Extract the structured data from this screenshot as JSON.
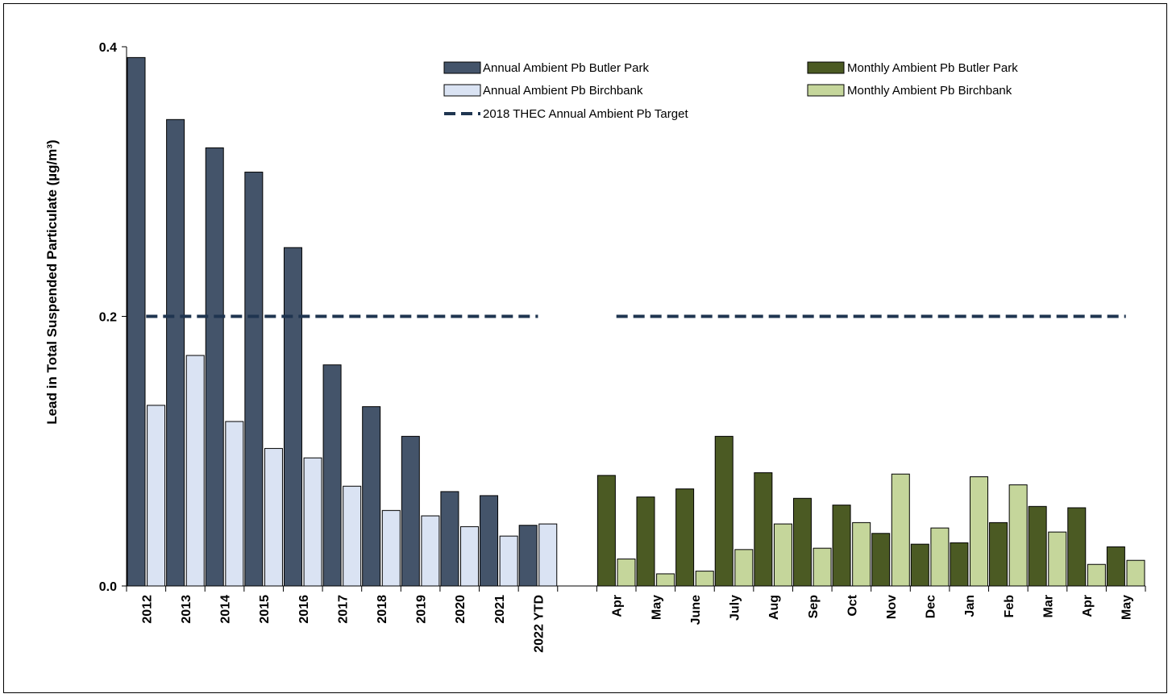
{
  "chart_data": {
    "type": "bar",
    "ylabel": "Lead in Total Suspended Particulate (µg/m³)",
    "ylim": [
      0.0,
      0.4
    ],
    "yticks": [
      "0.0",
      "0.2",
      "0.4"
    ],
    "grid": false,
    "legend_position": "top",
    "colors": {
      "annual_butler": "#44546a",
      "annual_birchbank": "#dae3f3",
      "monthly_butler": "#4b5a23",
      "monthly_birchbank": "#c5d69b",
      "target": "#1f3550"
    },
    "annual": {
      "categories": [
        "2012",
        "2013",
        "2014",
        "2015",
        "2016",
        "2017",
        "2018",
        "2019",
        "2020",
        "2021",
        "2022 YTD"
      ],
      "series": [
        {
          "name": "Annual Ambient Pb Butler Park",
          "values": [
            0.392,
            0.346,
            0.325,
            0.307,
            0.251,
            0.164,
            0.133,
            0.111,
            0.07,
            0.067,
            0.045
          ]
        },
        {
          "name": "Annual Ambient Pb Birchbank",
          "values": [
            0.134,
            0.171,
            0.122,
            0.102,
            0.095,
            0.074,
            0.056,
            0.052,
            0.044,
            0.037,
            0.046
          ]
        }
      ],
      "target_name": "2018 THEC Annual Ambient Pb Target",
      "target_value": 0.2
    },
    "monthly": {
      "categories": [
        "Apr",
        "May",
        "June",
        "July",
        "Aug",
        "Sep",
        "Oct",
        "Nov",
        "Dec",
        "Jan",
        "Feb",
        "Mar",
        "Apr",
        "May"
      ],
      "series": [
        {
          "name": "Monthly Ambient Pb Butler Park",
          "values": [
            0.082,
            0.066,
            0.072,
            0.111,
            0.084,
            0.065,
            0.06,
            0.039,
            0.031,
            0.032,
            0.047,
            0.059,
            0.058,
            0.029
          ]
        },
        {
          "name": "Monthly Ambient Pb Birchbank",
          "values": [
            0.02,
            0.009,
            0.011,
            0.027,
            0.046,
            0.028,
            0.047,
            0.083,
            0.043,
            0.081,
            0.075,
            0.04,
            0.016,
            0.019
          ]
        }
      ],
      "target_value": 0.2
    }
  }
}
